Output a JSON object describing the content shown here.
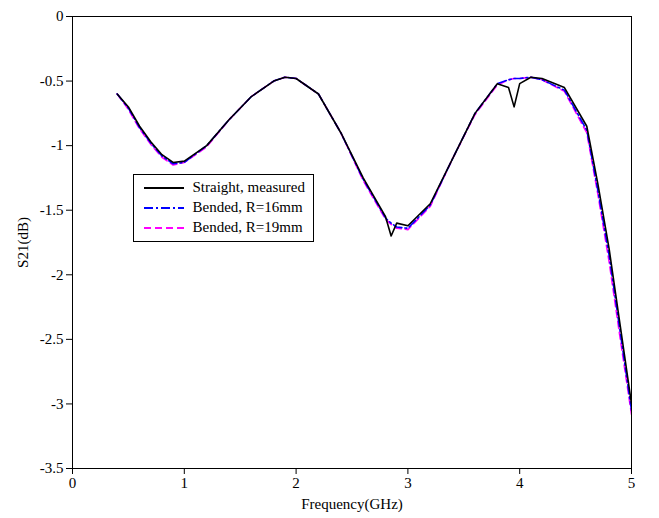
{
  "chart_data": {
    "type": "line",
    "x_label": "Frequency(GHz)",
    "y_label": "S21(dB)",
    "xlim": [
      0,
      5
    ],
    "xticks": [
      0,
      1,
      2,
      3,
      4,
      5
    ],
    "ylim": [
      -3.5,
      0
    ],
    "yticks": [
      -3.5,
      -3,
      -2.5,
      -2,
      -1.5,
      -1,
      -0.5,
      0
    ],
    "grid": false,
    "legend": "center left",
    "x": [
      0.4,
      0.5,
      0.6,
      0.7,
      0.8,
      0.9,
      1.0,
      1.2,
      1.4,
      1.6,
      1.8,
      1.9,
      2.0,
      2.2,
      2.4,
      2.6,
      2.8,
      2.85,
      2.9,
      3.0,
      3.2,
      3.4,
      3.6,
      3.8,
      3.9,
      3.95,
      4.0,
      4.1,
      4.2,
      4.4,
      4.6,
      4.7,
      4.8,
      4.9,
      5.0
    ],
    "series": [
      {
        "name": "Straight, measured",
        "color": "#000000",
        "line_style": "solid",
        "values": [
          -0.6,
          -0.7,
          -0.85,
          -0.97,
          -1.07,
          -1.13,
          -1.12,
          -1.0,
          -0.8,
          -0.62,
          -0.5,
          -0.47,
          -0.48,
          -0.6,
          -0.9,
          -1.25,
          -1.55,
          -1.7,
          -1.6,
          -1.62,
          -1.45,
          -1.1,
          -0.75,
          -0.52,
          -0.55,
          -0.7,
          -0.52,
          -0.47,
          -0.48,
          -0.55,
          -0.85,
          -1.3,
          -1.8,
          -2.4,
          -3.0
        ]
      },
      {
        "name": "Bended, R=16mm",
        "color": "#0000ff",
        "line_style": "dashdot",
        "values": [
          -0.6,
          -0.71,
          -0.86,
          -0.98,
          -1.08,
          -1.14,
          -1.13,
          -1.0,
          -0.8,
          -0.62,
          -0.5,
          -0.47,
          -0.48,
          -0.6,
          -0.9,
          -1.26,
          -1.56,
          -1.6,
          -1.63,
          -1.64,
          -1.46,
          -1.1,
          -0.75,
          -0.52,
          -0.49,
          -0.48,
          -0.48,
          -0.47,
          -0.49,
          -0.57,
          -0.88,
          -1.35,
          -1.85,
          -2.45,
          -3.05
        ]
      },
      {
        "name": "Bended, R=19mm",
        "color": "#ff00ff",
        "line_style": "dashed",
        "values": [
          -0.6,
          -0.72,
          -0.87,
          -0.99,
          -1.09,
          -1.15,
          -1.13,
          -1.01,
          -0.8,
          -0.62,
          -0.5,
          -0.47,
          -0.48,
          -0.6,
          -0.9,
          -1.27,
          -1.57,
          -1.61,
          -1.64,
          -1.65,
          -1.47,
          -1.1,
          -0.76,
          -0.53,
          -0.49,
          -0.48,
          -0.48,
          -0.47,
          -0.49,
          -0.58,
          -0.9,
          -1.38,
          -1.9,
          -2.5,
          -3.08
        ]
      }
    ]
  }
}
